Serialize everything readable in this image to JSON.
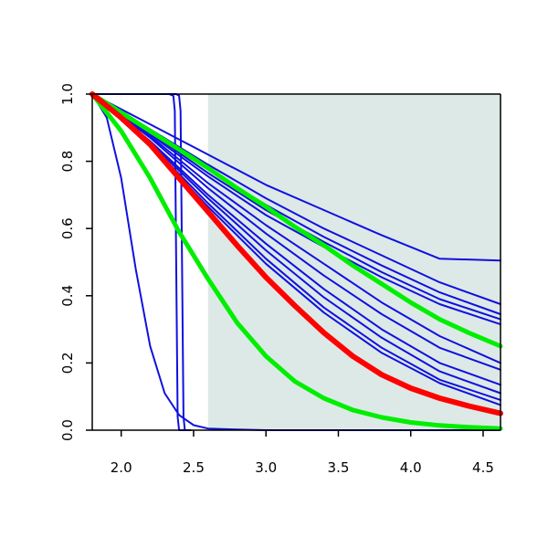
{
  "chart_data": {
    "type": "line",
    "title": "",
    "xlabel": "",
    "ylabel": "",
    "xlim": [
      1.8,
      4.62
    ],
    "ylim": [
      0.0,
      1.0
    ],
    "xticks": [
      2.0,
      2.5,
      3.0,
      3.5,
      4.0,
      4.5
    ],
    "xtick_labels": [
      "2.0",
      "2.5",
      "3.0",
      "3.5",
      "4.0",
      "4.5"
    ],
    "yticks": [
      0.0,
      0.2,
      0.4,
      0.6,
      0.8,
      1.0
    ],
    "ytick_labels": [
      "0.0",
      "0.2",
      "0.4",
      "0.6",
      "0.8",
      "1.0"
    ],
    "grid": false,
    "legend": "none",
    "shaded_region": {
      "x": [
        2.6,
        4.62
      ],
      "y": [
        0.0,
        1.0
      ],
      "color": "#dde9e7"
    },
    "colors": {
      "ensemble": "#1010e0",
      "bound": "#00ee00",
      "mean": "#ff0000"
    },
    "series": [
      {
        "role": "mean",
        "color": "#ff0000",
        "width": 6,
        "x": [
          1.8,
          2.0,
          2.2,
          2.4,
          2.6,
          2.8,
          3.0,
          3.2,
          3.4,
          3.6,
          3.8,
          4.0,
          4.2,
          4.4,
          4.62
        ],
        "y": [
          1.0,
          0.93,
          0.85,
          0.75,
          0.65,
          0.55,
          0.455,
          0.37,
          0.29,
          0.22,
          0.165,
          0.125,
          0.095,
          0.072,
          0.05
        ]
      },
      {
        "role": "upper-bound",
        "color": "#00ee00",
        "width": 5,
        "x": [
          1.8,
          2.0,
          2.2,
          2.4,
          2.6,
          2.8,
          3.0,
          3.2,
          3.4,
          3.6,
          3.8,
          4.0,
          4.2,
          4.4,
          4.62
        ],
        "y": [
          1.0,
          0.945,
          0.89,
          0.835,
          0.78,
          0.72,
          0.665,
          0.605,
          0.55,
          0.49,
          0.435,
          0.38,
          0.33,
          0.29,
          0.25
        ]
      },
      {
        "role": "lower-bound",
        "color": "#00ee00",
        "width": 5,
        "x": [
          1.8,
          2.0,
          2.2,
          2.4,
          2.6,
          2.8,
          3.0,
          3.2,
          3.4,
          3.6,
          3.8,
          4.0,
          4.2,
          4.4,
          4.62
        ],
        "y": [
          1.0,
          0.89,
          0.75,
          0.59,
          0.45,
          0.32,
          0.22,
          0.145,
          0.095,
          0.06,
          0.038,
          0.023,
          0.014,
          0.009,
          0.005
        ]
      },
      {
        "role": "ensemble",
        "color": "#1010e0",
        "width": 2,
        "x": [
          1.8,
          2.2,
          2.6,
          3.0,
          3.4,
          3.8,
          4.2,
          4.62
        ],
        "y": [
          1.0,
          0.91,
          0.82,
          0.73,
          0.655,
          0.58,
          0.51,
          0.505
        ]
      },
      {
        "role": "ensemble",
        "color": "#1010e0",
        "width": 2,
        "x": [
          1.8,
          2.2,
          2.6,
          3.0,
          3.4,
          3.8,
          4.2,
          4.62
        ],
        "y": [
          1.0,
          0.895,
          0.79,
          0.69,
          0.6,
          0.52,
          0.44,
          0.375
        ]
      },
      {
        "role": "ensemble",
        "color": "#1010e0",
        "width": 2,
        "x": [
          1.8,
          2.2,
          2.6,
          3.0,
          3.4,
          3.8,
          4.2,
          4.62
        ],
        "y": [
          1.0,
          0.89,
          0.775,
          0.67,
          0.575,
          0.49,
          0.41,
          0.345
        ]
      },
      {
        "role": "ensemble",
        "color": "#1010e0",
        "width": 2,
        "x": [
          1.8,
          2.2,
          2.6,
          3.0,
          3.4,
          3.8,
          4.2,
          4.62
        ],
        "y": [
          1.0,
          0.885,
          0.765,
          0.655,
          0.56,
          0.47,
          0.39,
          0.33
        ]
      },
      {
        "role": "ensemble",
        "color": "#1010e0",
        "width": 2,
        "x": [
          1.8,
          2.2,
          2.6,
          3.0,
          3.4,
          3.8,
          4.2,
          4.62
        ],
        "y": [
          1.0,
          0.88,
          0.755,
          0.64,
          0.545,
          0.455,
          0.375,
          0.315
        ]
      },
      {
        "role": "ensemble",
        "color": "#1010e0",
        "width": 2,
        "x": [
          1.8,
          2.2,
          2.6,
          3.0,
          3.4,
          3.8,
          4.2,
          4.62
        ],
        "y": [
          1.0,
          0.875,
          0.735,
          0.61,
          0.495,
          0.38,
          0.28,
          0.2
        ]
      },
      {
        "role": "ensemble",
        "color": "#1010e0",
        "width": 2,
        "x": [
          1.8,
          2.2,
          2.6,
          3.0,
          3.4,
          3.8,
          4.2,
          4.62
        ],
        "y": [
          1.0,
          0.87,
          0.72,
          0.585,
          0.46,
          0.345,
          0.245,
          0.18
        ]
      },
      {
        "role": "ensemble",
        "color": "#1010e0",
        "width": 2,
        "x": [
          1.8,
          2.2,
          2.6,
          3.0,
          3.4,
          3.8,
          4.2,
          4.62
        ],
        "y": [
          1.0,
          0.86,
          0.7,
          0.555,
          0.42,
          0.3,
          0.2,
          0.135
        ]
      },
      {
        "role": "ensemble",
        "color": "#1010e0",
        "width": 2,
        "x": [
          1.8,
          2.2,
          2.6,
          3.0,
          3.4,
          3.8,
          4.2,
          4.62
        ],
        "y": [
          1.0,
          0.855,
          0.69,
          0.535,
          0.395,
          0.275,
          0.175,
          0.11
        ]
      },
      {
        "role": "ensemble",
        "color": "#1010e0",
        "width": 2,
        "x": [
          1.8,
          2.2,
          2.6,
          3.0,
          3.4,
          3.8,
          4.2,
          4.62
        ],
        "y": [
          1.0,
          0.85,
          0.675,
          0.51,
          0.365,
          0.245,
          0.15,
          0.09
        ]
      },
      {
        "role": "ensemble",
        "color": "#1010e0",
        "width": 2,
        "x": [
          1.8,
          2.2,
          2.6,
          3.0,
          3.4,
          3.8,
          4.2,
          4.62
        ],
        "y": [
          1.0,
          0.845,
          0.665,
          0.495,
          0.35,
          0.23,
          0.14,
          0.075
        ]
      },
      {
        "role": "ensemble",
        "color": "#1010e0",
        "width": 2,
        "x": [
          1.8,
          1.9,
          2.0,
          2.1,
          2.2,
          2.3,
          2.4,
          2.5,
          2.6,
          2.8,
          3.0,
          3.5,
          4.0,
          4.62
        ],
        "y": [
          1.0,
          0.93,
          0.75,
          0.48,
          0.25,
          0.11,
          0.045,
          0.015,
          0.005,
          0.002,
          0.0,
          0.0,
          0.0,
          0.0
        ]
      },
      {
        "role": "ensemble",
        "color": "#1010e0",
        "width": 2,
        "x": [
          1.8,
          2.33,
          2.36,
          2.37,
          2.38,
          2.39,
          2.4,
          2.45
        ],
        "y": [
          1.0,
          1.0,
          0.995,
          0.95,
          0.5,
          0.04,
          0.0,
          0.0
        ]
      },
      {
        "role": "ensemble",
        "color": "#1010e0",
        "width": 2,
        "x": [
          1.8,
          2.38,
          2.4,
          2.41,
          2.42,
          2.43,
          2.44,
          2.48
        ],
        "y": [
          1.0,
          1.0,
          0.995,
          0.95,
          0.5,
          0.04,
          0.0,
          0.0
        ]
      }
    ]
  }
}
